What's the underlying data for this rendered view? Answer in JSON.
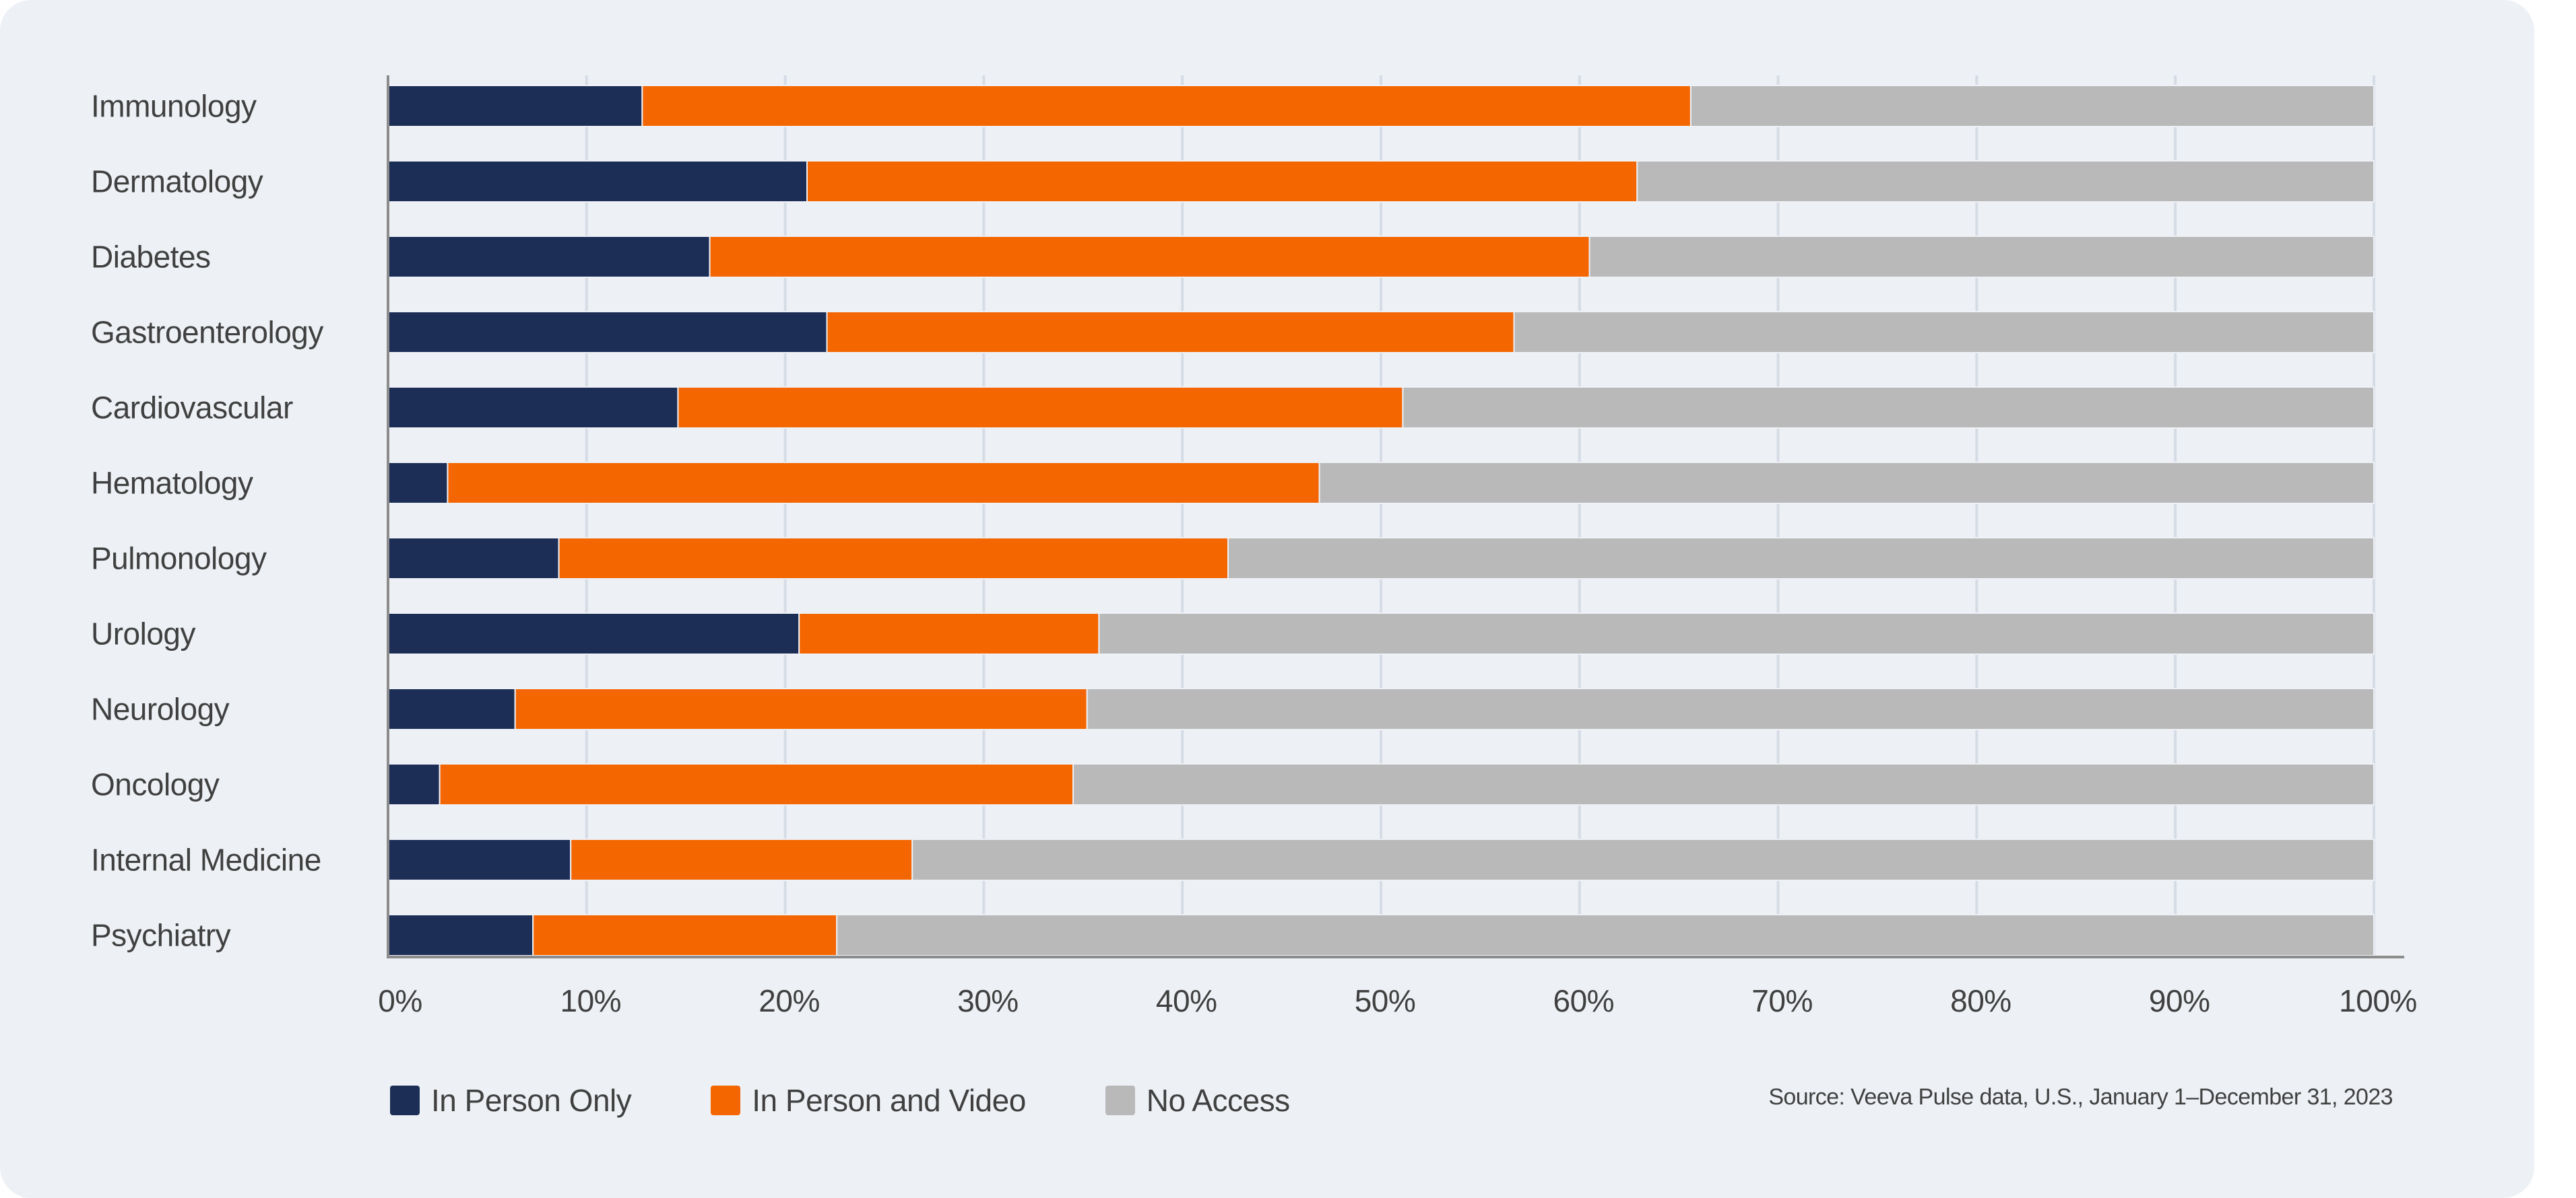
{
  "chart_data": {
    "type": "bar",
    "orientation": "horizontal",
    "stacked": true,
    "normalized_percent": true,
    "title": "",
    "xlabel": "",
    "ylabel": "",
    "xlim": [
      0,
      100
    ],
    "grid": true,
    "legend_position": "bottom-left",
    "categories": [
      "Immunology",
      "Dermatology",
      "Diabetes",
      "Gastroenterology",
      "Cardiovascular",
      "Hematology",
      "Pulmonology",
      "Urology",
      "Neurology",
      "Oncology",
      "Internal Medicine",
      "Psychiatry"
    ],
    "series": [
      {
        "name": "In Person Only",
        "color": "#1c2e56",
        "values": [
          12.8,
          21.1,
          16.2,
          22.1,
          14.6,
          3.0,
          8.6,
          20.7,
          6.4,
          2.6,
          9.2,
          7.3
        ]
      },
      {
        "name": "In Person and Video",
        "color": "#f46600",
        "values": [
          52.8,
          41.8,
          44.3,
          34.6,
          36.5,
          43.9,
          33.7,
          15.1,
          28.8,
          31.9,
          17.2,
          15.3
        ]
      },
      {
        "name": "No Access",
        "color": "#b9b9b9",
        "values": [
          34.4,
          37.1,
          39.5,
          43.3,
          48.9,
          53.1,
          57.7,
          64.2,
          64.8,
          65.5,
          73.6,
          77.4
        ]
      }
    ],
    "x_ticks": [
      "0%",
      "10%",
      "20%",
      "30%",
      "40%",
      "50%",
      "60%",
      "70%",
      "80%",
      "90%",
      "100%"
    ],
    "x_tick_values": [
      0,
      10,
      20,
      30,
      40,
      50,
      60,
      70,
      80,
      90,
      100
    ]
  },
  "legend": {
    "items": [
      {
        "label": "In Person Only",
        "color": "#1c2e56"
      },
      {
        "label": "In Person and Video",
        "color": "#f46600"
      },
      {
        "label": "No Access",
        "color": "#b9b9b9"
      }
    ]
  },
  "source": "Source: Veeva Pulse data, U.S., January 1–December 31, 2023",
  "colors": {
    "panel_background": "#edf0f5",
    "text": "#404040",
    "gridline": "#d6dce5",
    "axis": "#8c8c8c"
  }
}
